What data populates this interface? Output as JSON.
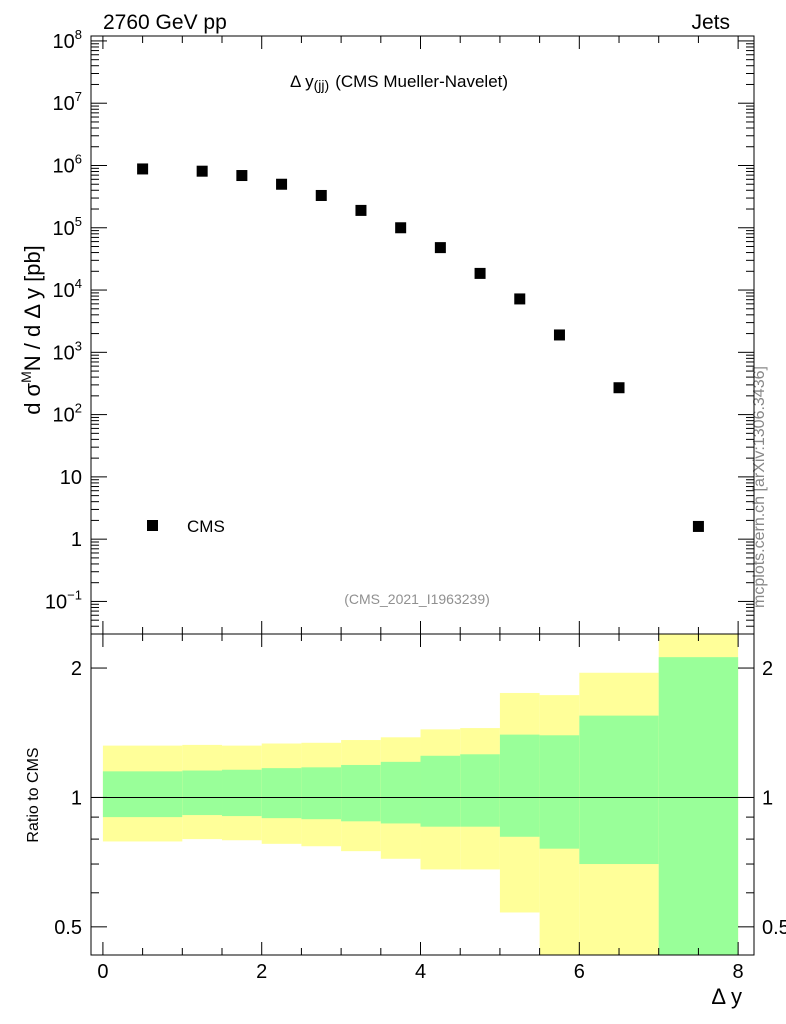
{
  "header": {
    "left": "2760 GeV pp",
    "right": "Jets"
  },
  "plot_title": {
    "main": "Δ y",
    "sub": "(jj)",
    "tail": "(CMS Mueller-Navelet)"
  },
  "ref_label": "(CMS_2021_I1963239)",
  "side_label": "mcplots.cern.ch [arXiv:1306.3436]",
  "legend": {
    "label": "CMS"
  },
  "main_ylabel": {
    "pre": "d σ",
    "sup": "M",
    "post": "N / d Δ y [pb]"
  },
  "ratio_ylabel": "Ratio to CMS",
  "xlabel": "Δ y",
  "colors": {
    "yellow": "#ffff99",
    "green": "#99ff99",
    "marker": "#000000"
  },
  "chart_data": [
    {
      "type": "scatter",
      "name": "main",
      "yscale": "log",
      "xlim": [
        -0.15,
        8.2
      ],
      "ylim": [
        0.03,
        120000000.0
      ],
      "y_ticks": [
        {
          "v": 100000000.0,
          "base": "10",
          "exp": "8"
        },
        {
          "v": 10000000.0,
          "base": "10",
          "exp": "7"
        },
        {
          "v": 1000000.0,
          "base": "10",
          "exp": "6"
        },
        {
          "v": 100000.0,
          "base": "10",
          "exp": "5"
        },
        {
          "v": 10000.0,
          "base": "10",
          "exp": "4"
        },
        {
          "v": 1000.0,
          "base": "10",
          "exp": "3"
        },
        {
          "v": 100,
          "base": "10",
          "exp": "2"
        },
        {
          "v": 10,
          "base": "10",
          "exp": ""
        },
        {
          "v": 1,
          "base": "1",
          "exp": ""
        },
        {
          "v": 0.1,
          "base": "10",
          "exp": "−1"
        }
      ],
      "series": [
        {
          "name": "CMS",
          "points": [
            {
              "x": 0.5,
              "y": 880000
            },
            {
              "x": 1.25,
              "y": 810000
            },
            {
              "x": 1.75,
              "y": 690000
            },
            {
              "x": 2.25,
              "y": 500000
            },
            {
              "x": 2.75,
              "y": 330000
            },
            {
              "x": 3.25,
              "y": 190000
            },
            {
              "x": 3.75,
              "y": 100000
            },
            {
              "x": 4.25,
              "y": 48000
            },
            {
              "x": 4.75,
              "y": 18500
            },
            {
              "x": 5.25,
              "y": 7200
            },
            {
              "x": 5.75,
              "y": 1900
            },
            {
              "x": 6.5,
              "y": 270
            },
            {
              "x": 7.5,
              "y": 1.6
            }
          ]
        }
      ]
    },
    {
      "type": "area",
      "name": "ratio",
      "yscale": "log",
      "xlim": [
        -0.15,
        8.2
      ],
      "ylim": [
        0.43,
        2.4
      ],
      "x_ticks": [
        0,
        2,
        4,
        6,
        8
      ],
      "y_ticks": [
        {
          "v": 0.5,
          "label": "0.5"
        },
        {
          "v": 1,
          "label": "1"
        },
        {
          "v": 2,
          "label": "2"
        }
      ],
      "reference_line": 1,
      "bins": [
        {
          "x0": 0.0,
          "x1": 1.0,
          "green": [
            0.9,
            1.15
          ],
          "yellow": [
            0.79,
            1.32
          ]
        },
        {
          "x0": 1.0,
          "x1": 1.5,
          "green": [
            0.91,
            1.155
          ],
          "yellow": [
            0.8,
            1.325
          ]
        },
        {
          "x0": 1.5,
          "x1": 2.0,
          "green": [
            0.905,
            1.16
          ],
          "yellow": [
            0.795,
            1.32
          ]
        },
        {
          "x0": 2.0,
          "x1": 2.5,
          "green": [
            0.895,
            1.17
          ],
          "yellow": [
            0.78,
            1.335
          ]
        },
        {
          "x0": 2.5,
          "x1": 3.0,
          "green": [
            0.89,
            1.175
          ],
          "yellow": [
            0.77,
            1.34
          ]
        },
        {
          "x0": 3.0,
          "x1": 3.5,
          "green": [
            0.88,
            1.19
          ],
          "yellow": [
            0.75,
            1.36
          ]
        },
        {
          "x0": 3.5,
          "x1": 4.0,
          "green": [
            0.87,
            1.21
          ],
          "yellow": [
            0.72,
            1.38
          ]
        },
        {
          "x0": 4.0,
          "x1": 4.5,
          "green": [
            0.855,
            1.25
          ],
          "yellow": [
            0.68,
            1.44
          ]
        },
        {
          "x0": 4.5,
          "x1": 5.0,
          "green": [
            0.855,
            1.26
          ],
          "yellow": [
            0.68,
            1.45
          ]
        },
        {
          "x0": 5.0,
          "x1": 5.5,
          "green": [
            0.81,
            1.4
          ],
          "yellow": [
            0.54,
            1.75
          ]
        },
        {
          "x0": 5.5,
          "x1": 6.0,
          "green": [
            0.76,
            1.395
          ],
          "yellow": [
            0.39,
            1.73
          ]
        },
        {
          "x0": 6.0,
          "x1": 7.0,
          "green": [
            0.7,
            1.55
          ],
          "yellow": [
            0.43,
            1.95
          ]
        },
        {
          "x0": 7.0,
          "x1": 8.0,
          "green": [
            0.39,
            2.12
          ],
          "yellow": [
            0.43,
            2.4
          ]
        }
      ]
    }
  ]
}
